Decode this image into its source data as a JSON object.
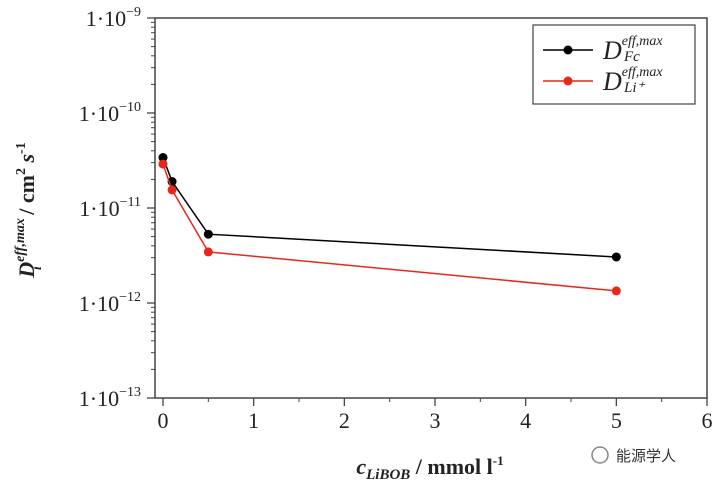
{
  "chart_data": {
    "type": "line",
    "title": "",
    "xlabel": "c_LiBOB / mmol l-1",
    "xlabel_main": "c",
    "xlabel_sub": "LiBOB",
    "xlabel_rest": " / mmol l",
    "xlabel_sup": "-1",
    "ylabel_main": "D",
    "ylabel_sub": "i",
    "ylabel_sup": "eff,max",
    "ylabel_rest": " / cm",
    "ylabel_sup2": "2",
    "ylabel_rest2": " s",
    "ylabel_sup3": "-1",
    "xlim": [
      -0.2,
      6
    ],
    "ylim": [
      1e-13,
      1e-09
    ],
    "yscale": "log",
    "xticks": [
      "0",
      "1",
      "2",
      "3",
      "4",
      "5",
      "6"
    ],
    "yticks": [
      {
        "base": "1·10",
        "exp": "−9",
        "value": 1e-09
      },
      {
        "base": "1·10",
        "exp": "−10",
        "value": 1e-10
      },
      {
        "base": "1·10",
        "exp": "−11",
        "value": 1e-11
      },
      {
        "base": "1·10",
        "exp": "−12",
        "value": 1e-12
      },
      {
        "base": "1·10",
        "exp": "−13",
        "value": 1e-13
      }
    ],
    "legend_position": "top-right",
    "series": [
      {
        "name": "D_Fc^eff,max",
        "main": "D",
        "sup": "eff,max",
        "sub": "Fc",
        "color": "#000000",
        "x": [
          0,
          0.1,
          0.5,
          5
        ],
        "y": [
          3.4e-11,
          1.9e-11,
          5.3e-12,
          3.05e-12
        ]
      },
      {
        "name": "D_Li+^eff,max",
        "main": "D",
        "sup": "eff,max",
        "sub": "Li⁺",
        "color": "#e8271c",
        "x": [
          0,
          0.1,
          0.5,
          5
        ],
        "y": [
          2.9e-11,
          1.55e-11,
          3.45e-12,
          1.34e-12
        ]
      }
    ]
  },
  "watermark": "能源学人"
}
